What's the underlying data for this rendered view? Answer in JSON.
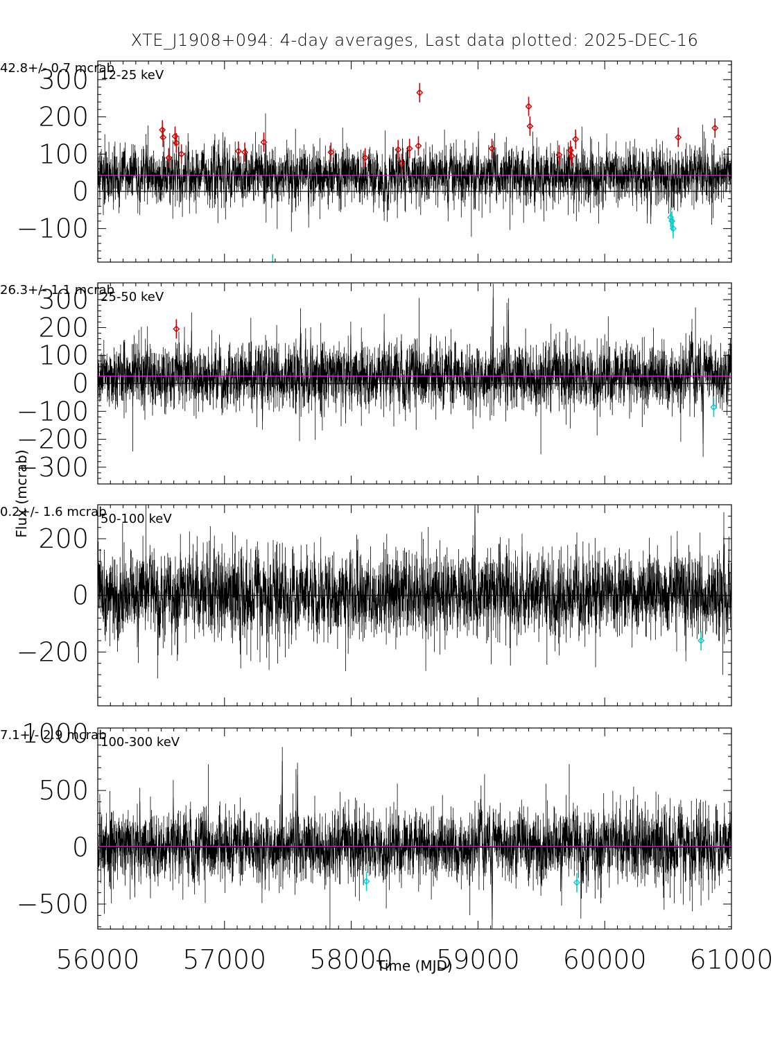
{
  "chart_data": {
    "type": "line",
    "title": "XTE_J1908+094:  4-day averages,  Last data plotted: 2025-DEC-16",
    "xlabel": "Time (MJD)",
    "ylabel": "Flux (mcrab)",
    "xlim": [
      56000,
      61000
    ],
    "xticks": [
      56000,
      57000,
      58000,
      59000,
      60000,
      61000
    ],
    "colors": {
      "data": "#000000",
      "mean": "#cc33cc",
      "high": "#cc0000",
      "low": "#00cccc",
      "zero": "#000000"
    },
    "panels": [
      {
        "band": "12-25 keV",
        "mean_label": "42.8+/-     0.7 mcrab",
        "mean": 42.8,
        "ylim": [
          -190,
          350
        ],
        "yticks": [
          -100,
          0,
          100,
          200,
          300
        ],
        "noise_sigma": 28,
        "err": 35,
        "high_points": [
          [
            56510,
            165
          ],
          [
            56515,
            145
          ],
          [
            56560,
            90
          ],
          [
            56610,
            148
          ],
          [
            56620,
            130
          ],
          [
            56660,
            100
          ],
          [
            57110,
            108
          ],
          [
            57160,
            105
          ],
          [
            57310,
            132
          ],
          [
            57840,
            105
          ],
          [
            58110,
            90
          ],
          [
            58370,
            112
          ],
          [
            58400,
            75
          ],
          [
            58460,
            115
          ],
          [
            58530,
            122
          ],
          [
            58540,
            265
          ],
          [
            59110,
            115
          ],
          [
            59400,
            228
          ],
          [
            59410,
            175
          ],
          [
            59640,
            98
          ],
          [
            59730,
            110
          ],
          [
            59740,
            95
          ],
          [
            59770,
            140
          ],
          [
            60580,
            145
          ],
          [
            60870,
            170
          ]
        ],
        "low_points": [
          [
            57380,
            -195
          ],
          [
            60520,
            -70
          ],
          [
            60530,
            -80
          ],
          [
            60540,
            -100
          ]
        ]
      },
      {
        "band": "25-50 keV",
        "mean_label": "26.3+/-     1.1 mcrab",
        "mean": 26.3,
        "ylim": [
          -360,
          360
        ],
        "yticks": [
          -300,
          -200,
          -100,
          0,
          100,
          200,
          300
        ],
        "noise_sigma": 45,
        "err": 55,
        "high_points": [
          [
            56620,
            195
          ]
        ],
        "low_points": [
          [
            60860,
            -85
          ]
        ]
      },
      {
        "band": "50-100 keV",
        "mean_label": "0.2+/-     1.6 mcrab",
        "mean": 0.2,
        "ylim": [
          -390,
          320
        ],
        "yticks": [
          -200,
          0,
          200
        ],
        "noise_sigma": 55,
        "err": 65,
        "high_points": [],
        "low_points": [
          [
            60760,
            -160
          ]
        ]
      },
      {
        "band": "100-300 keV",
        "mean_label": "7.1+/-     2.9 mcrab",
        "mean": 7.1,
        "ylim": [
          -720,
          1050
        ],
        "yticks": [
          -500,
          0,
          500,
          1000
        ],
        "noise_sigma": 120,
        "err": 140,
        "high_points": [],
        "low_points": [
          [
            58120,
            -300
          ],
          [
            59780,
            -310
          ]
        ]
      }
    ]
  }
}
